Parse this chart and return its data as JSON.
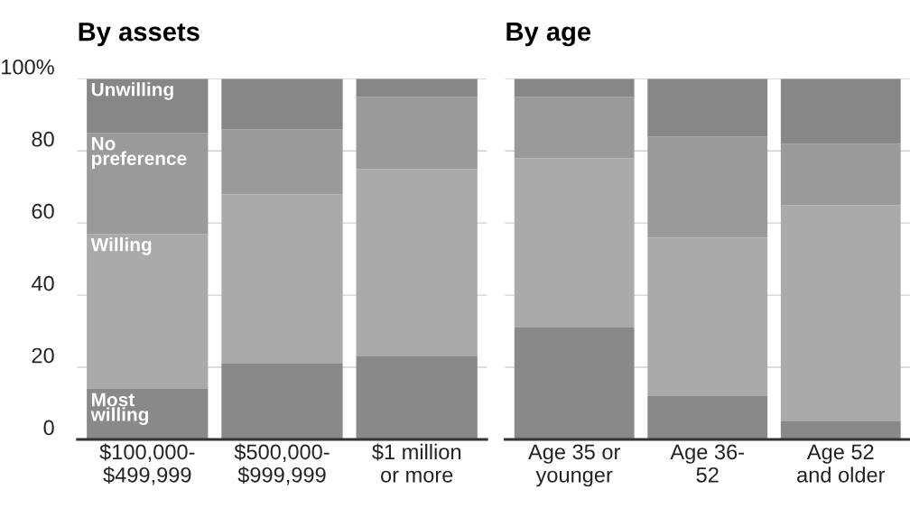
{
  "chart_data": [
    {
      "type": "bar",
      "title": "By assets",
      "categories": [
        "$100,000-\n$499,999",
        "$500,000-\n$999,999",
        "$1 million\nor more"
      ],
      "stacked": true,
      "ylim": [
        0,
        100
      ],
      "yticks": [
        0,
        20,
        40,
        60,
        80,
        {
          "value": 100,
          "label": "100%"
        }
      ],
      "grid": "y",
      "series": [
        {
          "name": "Most\nwilling",
          "color": "#898989",
          "values": [
            14,
            21,
            23
          ]
        },
        {
          "name": "Willing",
          "color": "#aaaaaa",
          "values": [
            43,
            47,
            52
          ]
        },
        {
          "name": "No\npreference",
          "color": "#9a9a9a",
          "values": [
            28,
            18,
            20
          ]
        },
        {
          "name": "Unwilling",
          "color": "#878787",
          "values": [
            15,
            14,
            5
          ]
        }
      ]
    },
    {
      "type": "bar",
      "title": "By age",
      "categories": [
        "Age 35 or\nyounger",
        "Age 36-\n52",
        "Age 52\nand older"
      ],
      "stacked": true,
      "ylim": [
        0,
        100
      ],
      "yticks": [
        {
          "value": 0,
          "label": null
        },
        {
          "value": 20,
          "label": null
        },
        {
          "value": 40,
          "label": null
        },
        {
          "value": 60,
          "label": null
        },
        {
          "value": 80,
          "label": null
        },
        {
          "value": 100,
          "label": null
        }
      ],
      "grid": "y",
      "tick_labels": "x",
      "series": [
        {
          "color": "#898989",
          "values": [
            31,
            12,
            5
          ]
        },
        {
          "color": "#aaaaaa",
          "values": [
            47,
            44,
            60
          ]
        },
        {
          "color": "#9a9a9a",
          "values": [
            17,
            28,
            17
          ]
        },
        {
          "color": "#878787",
          "values": [
            5,
            16,
            18
          ]
        }
      ]
    }
  ]
}
